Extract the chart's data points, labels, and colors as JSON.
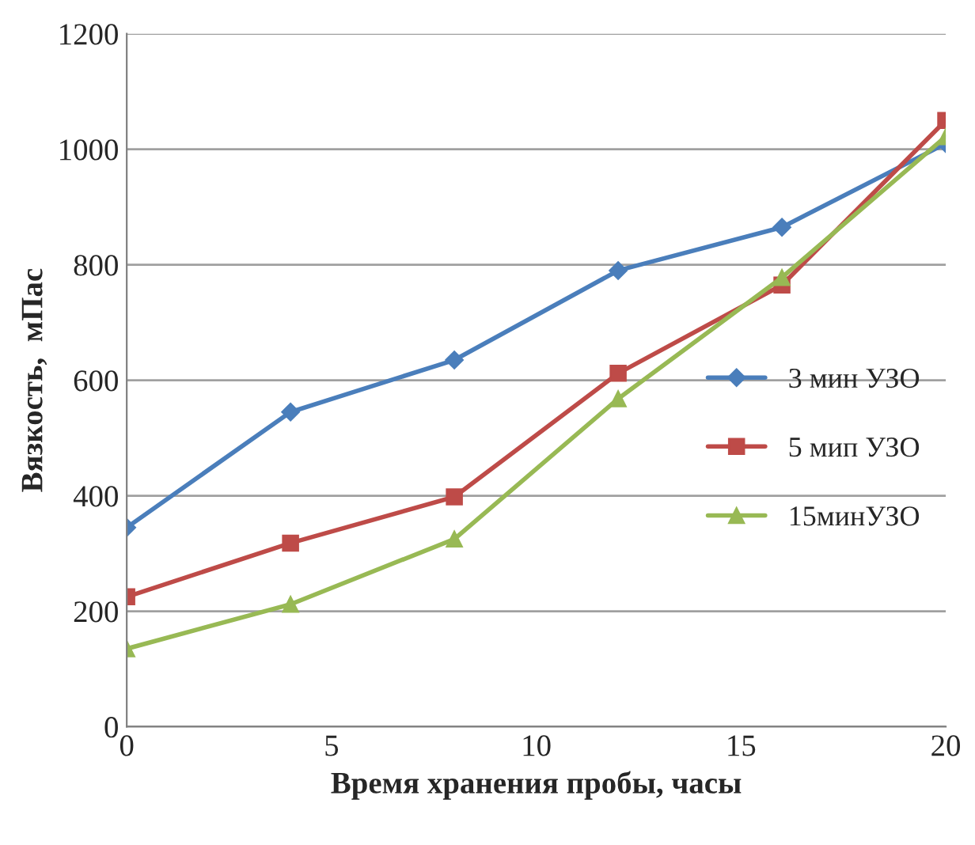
{
  "chart_data": {
    "type": "line",
    "xlabel": "Время хранения пробы, часы",
    "ylabel": "Вязкость,  мПас",
    "x": [
      0,
      4,
      8,
      12,
      16,
      20
    ],
    "series": [
      {
        "name": "3 мин УЗО",
        "color": "#4a7ebb",
        "marker": "diamond",
        "values": [
          345,
          545,
          635,
          790,
          865,
          1010
        ]
      },
      {
        "name": "5 мип УЗО",
        "color": "#be4b48",
        "marker": "square",
        "values": [
          225,
          318,
          398,
          612,
          765,
          1050
        ]
      },
      {
        "name": "15минУЗО",
        "color": "#98b954",
        "marker": "triangle",
        "values": [
          135,
          212,
          325,
          568,
          778,
          1022
        ]
      }
    ],
    "xlim": [
      0,
      20
    ],
    "xticks": [
      0,
      5,
      10,
      15,
      20
    ],
    "ylim": [
      0,
      1200
    ],
    "yticks": [
      0,
      200,
      400,
      600,
      800,
      1000,
      1200
    ],
    "grid": "y",
    "legend": "right"
  }
}
